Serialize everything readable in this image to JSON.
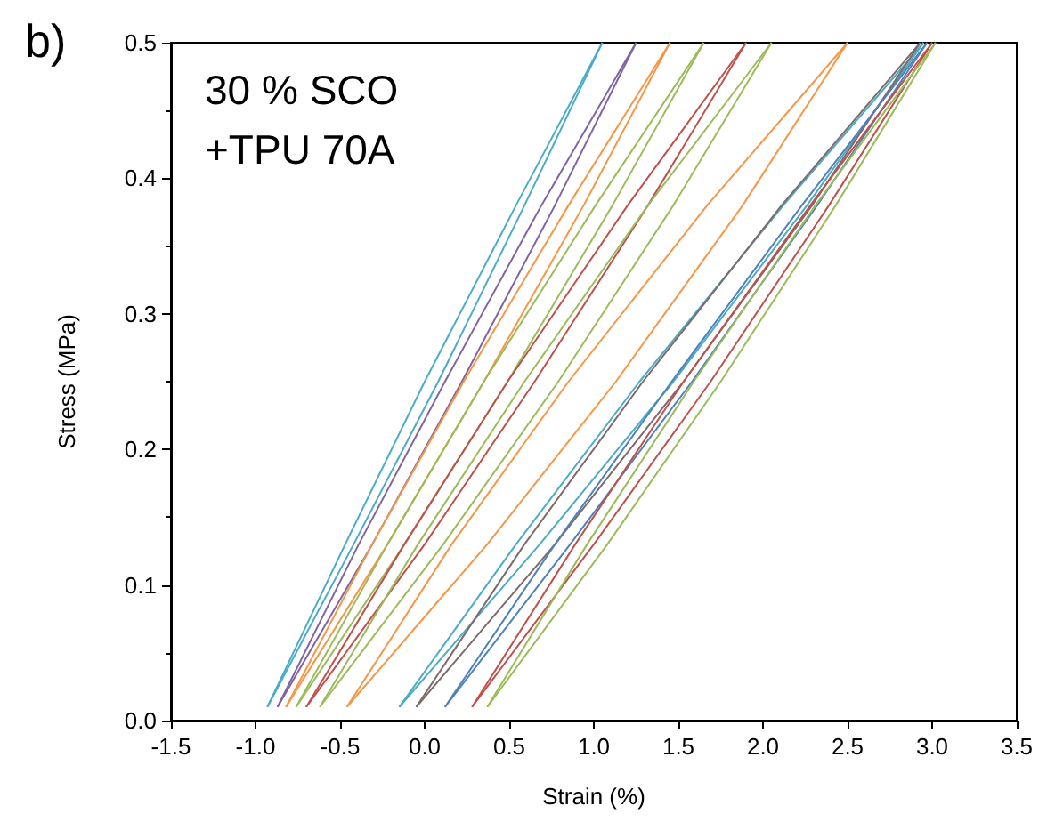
{
  "chart_data": {
    "type": "line",
    "xlabel": "Strain (%)",
    "ylabel": "Stress (MPa)",
    "annotations": [
      "b)",
      "30 % SCO\n+TPU 70A"
    ],
    "xlim": [
      -1.5,
      3.5
    ],
    "xticks": [
      {
        "value": -1.5,
        "label": "-1.5"
      },
      {
        "value": -1,
        "label": "-1.0"
      },
      {
        "value": -0.5,
        "label": "-0.5"
      },
      {
        "value": 0,
        "label": "0.0"
      },
      {
        "value": 0.5,
        "label": "0.5"
      },
      {
        "value": 1,
        "label": "1.0"
      },
      {
        "value": 1.5,
        "label": "1.5"
      },
      {
        "value": 2,
        "label": "2.0"
      },
      {
        "value": 2.5,
        "label": "2.5"
      },
      {
        "value": 3,
        "label": "3.0"
      },
      {
        "value": 3.5,
        "label": "3.5"
      }
    ],
    "ylim": [
      0,
      0.5
    ],
    "yticks": [
      {
        "value": 0,
        "label": "0.0"
      },
      {
        "value": 0.1,
        "label": "0.1"
      },
      {
        "value": 0.2,
        "label": "0.2"
      },
      {
        "value": 0.3,
        "label": "0.3"
      },
      {
        "value": 0.4,
        "label": "0.4"
      },
      {
        "value": 0.5,
        "label": "0.5"
      }
    ],
    "grid": false,
    "marker": "none",
    "line_style": "solid",
    "series": [
      {
        "color": "#4bacc6",
        "x": [
          -0.93,
          -0.42,
          0.08,
          0.59,
          1.05
        ],
        "values": [
          0.01,
          0.13,
          0.25,
          0.38,
          0.5
        ]
      },
      {
        "color": "#4bacc6",
        "x": [
          -0.93,
          -0.47,
          0.0,
          0.54,
          1.05
        ],
        "values": [
          0.01,
          0.13,
          0.25,
          0.38,
          0.5
        ]
      },
      {
        "color": "#8064a2",
        "x": [
          -0.87,
          -0.31,
          0.22,
          0.77,
          1.25
        ],
        "values": [
          0.01,
          0.13,
          0.25,
          0.38,
          0.5
        ]
      },
      {
        "color": "#8064a2",
        "x": [
          -0.87,
          -0.39,
          0.12,
          0.69,
          1.25
        ],
        "values": [
          0.01,
          0.13,
          0.25,
          0.38,
          0.5
        ]
      },
      {
        "color": "#f79646",
        "x": [
          -0.82,
          -0.22,
          0.35,
          0.94,
          1.45
        ],
        "values": [
          0.01,
          0.13,
          0.25,
          0.38,
          0.5
        ]
      },
      {
        "color": "#f79646",
        "x": [
          -0.82,
          -0.31,
          0.23,
          0.85,
          1.45
        ],
        "values": [
          0.01,
          0.13,
          0.25,
          0.38,
          0.5
        ]
      },
      {
        "color": "#9bbb59",
        "x": [
          -0.76,
          -0.12,
          0.49,
          1.11,
          1.65
        ],
        "values": [
          0.01,
          0.13,
          0.25,
          0.38,
          0.5
        ]
      },
      {
        "color": "#9bbb59",
        "x": [
          -0.76,
          -0.22,
          0.35,
          1.01,
          1.65
        ],
        "values": [
          0.01,
          0.13,
          0.25,
          0.38,
          0.5
        ]
      },
      {
        "color": "#c0504d",
        "x": [
          -0.7,
          0.0,
          0.65,
          1.32,
          1.9
        ],
        "values": [
          0.01,
          0.13,
          0.25,
          0.38,
          0.5
        ]
      },
      {
        "color": "#c0504d",
        "x": [
          -0.7,
          -0.12,
          0.49,
          1.2,
          1.9
        ],
        "values": [
          0.01,
          0.13,
          0.25,
          0.38,
          0.5
        ]
      },
      {
        "color": "#9bbb59",
        "x": [
          -0.62,
          0.11,
          0.79,
          1.47,
          2.05
        ],
        "values": [
          0.01,
          0.13,
          0.25,
          0.38,
          0.5
        ]
      },
      {
        "color": "#9bbb59",
        "x": [
          -0.62,
          -0.04,
          0.59,
          1.32,
          2.05
        ],
        "values": [
          0.01,
          0.13,
          0.25,
          0.38,
          0.5
        ]
      },
      {
        "color": "#f79646",
        "x": [
          -0.46,
          0.37,
          1.13,
          1.88,
          2.5
        ],
        "values": [
          0.01,
          0.13,
          0.25,
          0.38,
          0.5
        ]
      },
      {
        "color": "#f79646",
        "x": [
          -0.46,
          0.16,
          0.85,
          1.67,
          2.5
        ],
        "values": [
          0.01,
          0.13,
          0.25,
          0.38,
          0.5
        ]
      },
      {
        "color": "#4bacc6",
        "x": [
          -0.15,
          0.68,
          1.47,
          2.26,
          2.95
        ],
        "values": [
          0.01,
          0.13,
          0.25,
          0.38,
          0.5
        ]
      },
      {
        "color": "#4bacc6",
        "x": [
          -0.15,
          0.54,
          1.27,
          2.12,
          2.95
        ],
        "values": [
          0.01,
          0.13,
          0.25,
          0.38,
          0.5
        ]
      },
      {
        "color": "#7f6a6a",
        "x": [
          -0.05,
          0.77,
          1.53,
          2.29,
          2.93
        ],
        "values": [
          0.01,
          0.13,
          0.25,
          0.38,
          0.5
        ]
      },
      {
        "color": "#7f6a6a",
        "x": [
          -0.05,
          0.59,
          1.29,
          2.11,
          2.93
        ],
        "values": [
          0.01,
          0.13,
          0.25,
          0.38,
          0.5
        ]
      },
      {
        "color": "#4f81bd",
        "x": [
          0.12,
          0.86,
          1.58,
          2.32,
          2.97
        ],
        "values": [
          0.01,
          0.13,
          0.25,
          0.38,
          0.5
        ]
      },
      {
        "color": "#4f81bd",
        "x": [
          0.12,
          0.77,
          1.46,
          2.23,
          2.97
        ],
        "values": [
          0.01,
          0.13,
          0.25,
          0.38,
          0.5
        ]
      },
      {
        "color": "#c0504d",
        "x": [
          0.28,
          1.0,
          1.69,
          2.39,
          3.0
        ],
        "values": [
          0.01,
          0.13,
          0.25,
          0.38,
          0.5
        ]
      },
      {
        "color": "#c0504d",
        "x": [
          0.28,
          0.89,
          1.53,
          2.28,
          3.0
        ],
        "values": [
          0.01,
          0.13,
          0.25,
          0.38,
          0.5
        ]
      },
      {
        "color": "#9bbb59",
        "x": [
          0.37,
          1.08,
          1.75,
          2.43,
          3.02
        ],
        "values": [
          0.01,
          0.13,
          0.25,
          0.38,
          0.5
        ]
      },
      {
        "color": "#9bbb59",
        "x": [
          0.37,
          0.96,
          1.59,
          2.31,
          3.02
        ],
        "values": [
          0.01,
          0.13,
          0.25,
          0.38,
          0.5
        ]
      }
    ]
  }
}
